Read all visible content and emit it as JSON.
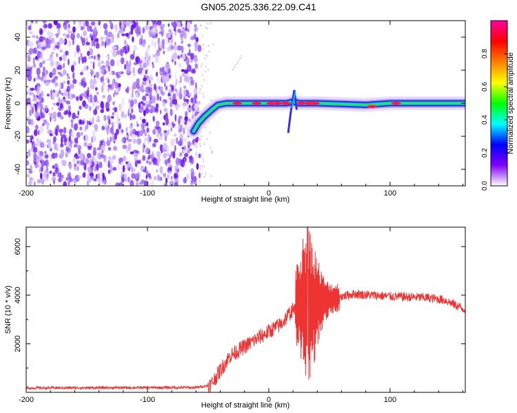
{
  "title": "GN05.2025.336.22.09.C41",
  "chart_data": [
    {
      "type": "heatmap",
      "xlabel": "Height of straight line (km)",
      "ylabel": "Frequency (Hz)",
      "xlim": [
        -200,
        162
      ],
      "ylim": [
        -50,
        50
      ],
      "x_ticks": [
        "-200",
        "-100",
        "0",
        "100"
      ],
      "y_ticks": [
        "-40",
        "-20",
        "0",
        "20",
        "40"
      ],
      "colorbar": {
        "label": "Normalized spectral amplitude",
        "range": [
          0,
          1
        ],
        "ticks": [
          "0.0",
          "0.2",
          "0.4",
          "0.6",
          "0.8"
        ],
        "colors": [
          "#ffffff",
          "#8000ff",
          "#0000ff",
          "#00ffff",
          "#00ff00",
          "#ffff00",
          "#ff8000",
          "#ff0000",
          "#ff00a0"
        ]
      },
      "noise_region_x": [
        -200,
        -57
      ],
      "trace": [
        {
          "x": -62,
          "y": -17
        },
        {
          "x": -58,
          "y": -12
        },
        {
          "x": -53,
          "y": -8
        },
        {
          "x": -47,
          "y": -4
        },
        {
          "x": -42,
          "y": -1
        },
        {
          "x": -35,
          "y": 0
        },
        {
          "x": -25,
          "y": 0
        },
        {
          "x": -10,
          "y": 0
        },
        {
          "x": 0,
          "y": 0
        },
        {
          "x": 15,
          "y": 0
        },
        {
          "x": 20,
          "y": 1
        },
        {
          "x": 25,
          "y": 0
        },
        {
          "x": 40,
          "y": 0
        },
        {
          "x": 80,
          "y": -1
        },
        {
          "x": 100,
          "y": 0
        },
        {
          "x": 130,
          "y": 0
        },
        {
          "x": 162,
          "y": 0
        }
      ],
      "peaks": [
        {
          "x": -26,
          "y": 0
        },
        {
          "x": -10,
          "y": 0
        },
        {
          "x": 2,
          "y": 0
        },
        {
          "x": 7,
          "y": 0
        },
        {
          "x": 14,
          "y": 0
        },
        {
          "x": 27,
          "y": 0
        },
        {
          "x": 33,
          "y": 0
        },
        {
          "x": 36,
          "y": 0
        },
        {
          "x": 38,
          "y": 0
        },
        {
          "x": 85,
          "y": -2
        },
        {
          "x": 105,
          "y": 0
        }
      ]
    },
    {
      "type": "line",
      "xlabel": "Height of straight line (km)",
      "ylabel": "SNR (10 * v/v)",
      "xlim": [
        -200,
        162
      ],
      "ylim": [
        0,
        6800
      ],
      "x_ticks": [
        "-200",
        "-100",
        "0",
        "100"
      ],
      "y_ticks": [
        "2000",
        "4000",
        "6000"
      ],
      "color": "#ee3333",
      "series": [
        {
          "envelope": [
            {
              "x": -200,
              "y": 180
            },
            {
              "x": -60,
              "y": 200
            },
            {
              "x": -48,
              "y": 300
            },
            {
              "x": -32,
              "y": 1500
            },
            {
              "x": -10,
              "y": 2200
            },
            {
              "x": 10,
              "y": 2800
            },
            {
              "x": 18,
              "y": 3300
            },
            {
              "x": 25,
              "y": 3600
            },
            {
              "x": 40,
              "y": 3700
            },
            {
              "x": 50,
              "y": 3850
            },
            {
              "x": 70,
              "y": 4050
            },
            {
              "x": 100,
              "y": 3950
            },
            {
              "x": 130,
              "y": 3900
            },
            {
              "x": 145,
              "y": 3800
            },
            {
              "x": 162,
              "y": 3400
            }
          ],
          "burst_x": [
            22,
            58
          ],
          "max_peak": {
            "x": 32,
            "y": 6800
          }
        }
      ]
    }
  ]
}
